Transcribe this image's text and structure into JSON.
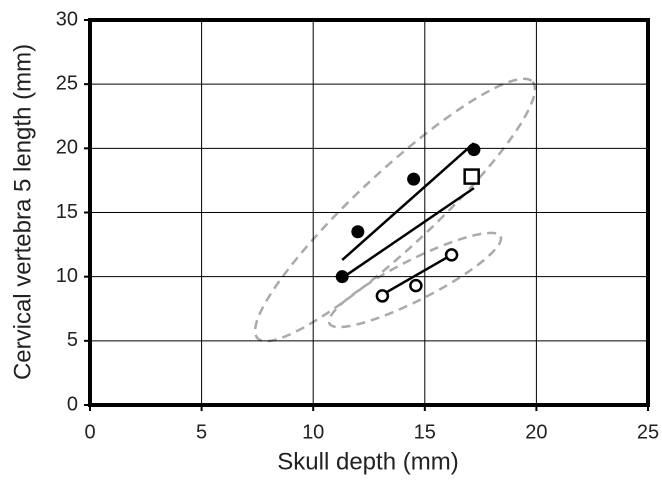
{
  "chart_data": {
    "type": "scatter",
    "x_label": "Skull depth (mm)",
    "y_label": "Cervical vertebra 5 length (mm)",
    "xlim": [
      0,
      25
    ],
    "ylim": [
      0,
      30
    ],
    "xticks": [
      0,
      5,
      10,
      15,
      20,
      25
    ],
    "yticks": [
      0,
      5,
      10,
      15,
      20,
      25,
      30
    ],
    "grid": true,
    "series": [
      {
        "marker": "filled-circle",
        "color": "#000000",
        "x": [
          11.3,
          12.0,
          14.5,
          17.2
        ],
        "values": [
          10.0,
          13.5,
          17.6,
          19.9
        ]
      },
      {
        "marker": "open-circle",
        "color": "#000000",
        "x": [
          13.1,
          14.6,
          16.2
        ],
        "values": [
          8.5,
          9.3,
          11.7
        ]
      },
      {
        "marker": "open-square",
        "color": "#000000",
        "x": [
          17.1
        ],
        "values": [
          17.8
        ]
      },
      {
        "marker": "line",
        "color": "#000000",
        "x": [
          11.3,
          17.2
        ],
        "values": [
          11.3,
          20.4
        ]
      },
      {
        "marker": "line",
        "color": "#000000",
        "x": [
          11.3,
          17.2
        ],
        "values": [
          9.9,
          16.9
        ]
      },
      {
        "marker": "line",
        "color": "#000000",
        "x": [
          12.9,
          16.2
        ],
        "values": [
          8.4,
          11.7
        ]
      }
    ]
  }
}
